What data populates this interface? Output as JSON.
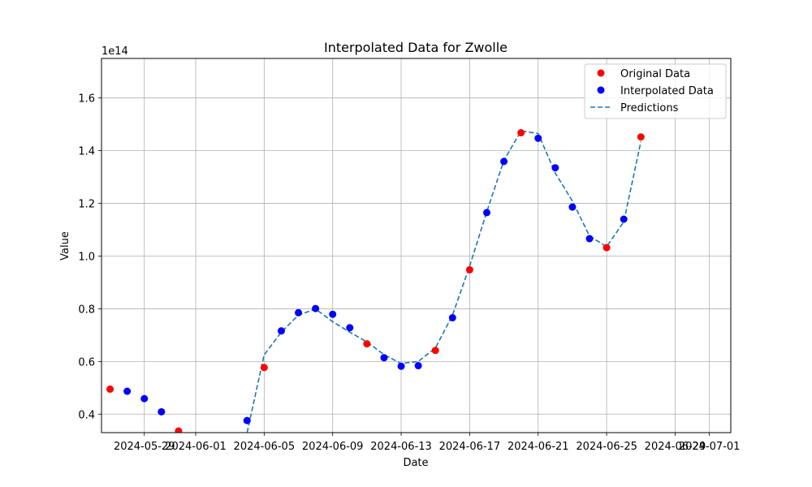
{
  "chart_data": {
    "type": "scatter",
    "title": "Interpolated Data for Zwolle",
    "xlabel": "Date",
    "ylabel": "Value",
    "y_offset_label": "1e14",
    "xlim": [
      "2024-05-26T12:00",
      "2024-07-02T06:00"
    ],
    "ylim": [
      0.33,
      1.75
    ],
    "x_ticks": [
      "2024-05-29",
      "2024-06-01",
      "2024-06-05",
      "2024-06-09",
      "2024-06-13",
      "2024-06-17",
      "2024-06-21",
      "2024-06-25",
      "2024-06-29",
      "2024-07-01"
    ],
    "y_ticks": [
      "0.4",
      "0.6",
      "0.8",
      "1.0",
      "1.2",
      "1.4",
      "1.6"
    ],
    "grid": true,
    "legend_position": "top-right",
    "colors": {
      "original": "#ff0000",
      "interpolated": "#0000ff",
      "predictions": "#1f77b4",
      "grid": "#b0b0b0"
    },
    "series": [
      {
        "name": "Original Data",
        "kind": "scatter",
        "color": "#ff0000",
        "points": [
          {
            "x": "2024-05-27",
            "y": 0.495
          },
          {
            "x": "2024-05-31",
            "y": 0.336
          },
          {
            "x": "2024-06-05",
            "y": 0.577
          },
          {
            "x": "2024-06-11",
            "y": 0.667
          },
          {
            "x": "2024-06-15",
            "y": 0.642
          },
          {
            "x": "2024-06-17",
            "y": 0.948
          },
          {
            "x": "2024-06-20",
            "y": 1.468
          },
          {
            "x": "2024-06-25",
            "y": 1.032
          },
          {
            "x": "2024-06-27",
            "y": 1.452
          }
        ]
      },
      {
        "name": "Interpolated Data",
        "kind": "scatter",
        "color": "#0000ff",
        "points": [
          {
            "x": "2024-05-28",
            "y": 0.487
          },
          {
            "x": "2024-05-29",
            "y": 0.459
          },
          {
            "x": "2024-05-30",
            "y": 0.409
          },
          {
            "x": "2024-06-04",
            "y": 0.376
          },
          {
            "x": "2024-06-06",
            "y": 0.716
          },
          {
            "x": "2024-06-07",
            "y": 0.785
          },
          {
            "x": "2024-06-08",
            "y": 0.801
          },
          {
            "x": "2024-06-09",
            "y": 0.779
          },
          {
            "x": "2024-06-10",
            "y": 0.728
          },
          {
            "x": "2024-06-12",
            "y": 0.614
          },
          {
            "x": "2024-06-13",
            "y": 0.582
          },
          {
            "x": "2024-06-14",
            "y": 0.584
          },
          {
            "x": "2024-06-16",
            "y": 0.766
          },
          {
            "x": "2024-06-18",
            "y": 1.165
          },
          {
            "x": "2024-06-19",
            "y": 1.359
          },
          {
            "x": "2024-06-21",
            "y": 1.447
          },
          {
            "x": "2024-06-22",
            "y": 1.335
          },
          {
            "x": "2024-06-23",
            "y": 1.186
          },
          {
            "x": "2024-06-24",
            "y": 1.066
          },
          {
            "x": "2024-06-26",
            "y": 1.14
          }
        ]
      },
      {
        "name": "Predictions",
        "kind": "dashed-line",
        "color": "#1f77b4",
        "points": [
          {
            "x": "2024-06-04",
            "y": 0.33
          },
          {
            "x": "2024-06-05",
            "y": 0.625
          },
          {
            "x": "2024-06-06",
            "y": 0.711
          },
          {
            "x": "2024-06-07",
            "y": 0.776
          },
          {
            "x": "2024-06-08",
            "y": 0.799
          },
          {
            "x": "2024-06-09",
            "y": 0.751
          },
          {
            "x": "2024-06-10",
            "y": 0.711
          },
          {
            "x": "2024-06-11",
            "y": 0.674
          },
          {
            "x": "2024-06-12",
            "y": 0.626
          },
          {
            "x": "2024-06-13",
            "y": 0.592
          },
          {
            "x": "2024-06-14",
            "y": 0.6
          },
          {
            "x": "2024-06-15",
            "y": 0.651
          },
          {
            "x": "2024-06-16",
            "y": 0.776
          },
          {
            "x": "2024-06-17",
            "y": 0.962
          },
          {
            "x": "2024-06-18",
            "y": 1.168
          },
          {
            "x": "2024-06-19",
            "y": 1.363
          },
          {
            "x": "2024-06-20",
            "y": 1.475
          },
          {
            "x": "2024-06-21",
            "y": 1.465
          },
          {
            "x": "2024-06-22",
            "y": 1.315
          },
          {
            "x": "2024-06-23",
            "y": 1.209
          },
          {
            "x": "2024-06-24",
            "y": 1.076
          },
          {
            "x": "2024-06-25",
            "y": 1.036
          },
          {
            "x": "2024-06-26",
            "y": 1.13
          },
          {
            "x": "2024-06-27",
            "y": 1.435
          }
        ]
      }
    ]
  }
}
